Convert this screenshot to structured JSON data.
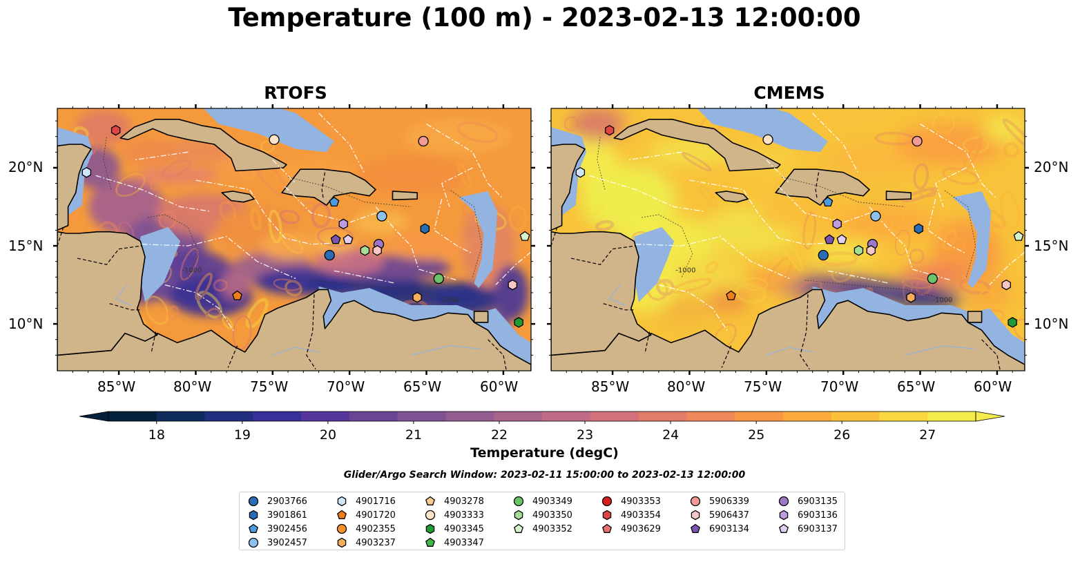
{
  "title": "Temperature (100 m) - 2023-02-13 12:00:00",
  "panels": [
    {
      "title": "RTOFS",
      "theme": "rtofs"
    },
    {
      "title": "CMEMS",
      "theme": "cmems"
    }
  ],
  "axes": {
    "x_ticks": [
      "85°W",
      "80°W",
      "75°W",
      "70°W",
      "65°W",
      "60°W"
    ],
    "y_ticks": [
      "20°N",
      "15°N",
      "10°N"
    ],
    "lon_range": [
      -89,
      -58.2
    ],
    "lat_range": [
      7,
      23.8
    ]
  },
  "colorbar": {
    "label": "Temperature (degC)",
    "ticks": [
      "18",
      "19",
      "20",
      "21",
      "22",
      "23",
      "24",
      "25",
      "26",
      "27"
    ],
    "min": 18,
    "max": 27,
    "colors": [
      "#04203a",
      "#0e2b5c",
      "#21307e",
      "#38309a",
      "#543599",
      "#6a4595",
      "#7f5293",
      "#935c90",
      "#a9648c",
      "#bf6b86",
      "#d2717c",
      "#e27b6a",
      "#ef8858",
      "#f89847",
      "#fbab3c",
      "#fbc03a",
      "#f7d840",
      "#f3ec4c"
    ],
    "extend": "both"
  },
  "contour_labels": [
    "-1000",
    "-1000"
  ],
  "search_window": "Glider/Argo Search Window: 2023-02-11 15:00:00 to 2023-02-13 12:00:00",
  "legend": [
    {
      "id": "2903766",
      "color": "#2a6db5",
      "marker": "circle"
    },
    {
      "id": "3901861",
      "color": "#2a6db5",
      "marker": "hexagon"
    },
    {
      "id": "3902456",
      "color": "#4b9bdf",
      "marker": "pentagon"
    },
    {
      "id": "3902457",
      "color": "#8ec0ec",
      "marker": "circle"
    },
    {
      "id": "4901716",
      "color": "#cfe6f8",
      "marker": "hexagon"
    },
    {
      "id": "4901720",
      "color": "#ef7d1a",
      "marker": "pentagon"
    },
    {
      "id": "4902355",
      "color": "#f5902e",
      "marker": "circle"
    },
    {
      "id": "4903237",
      "color": "#f8ad5e",
      "marker": "hexagon"
    },
    {
      "id": "4903278",
      "color": "#fbcb95",
      "marker": "pentagon"
    },
    {
      "id": "4903333",
      "color": "#fde3c8",
      "marker": "circle"
    },
    {
      "id": "4903345",
      "color": "#219a35",
      "marker": "hexagon"
    },
    {
      "id": "4903347",
      "color": "#3fb54a",
      "marker": "pentagon"
    },
    {
      "id": "4903349",
      "color": "#6bc36a",
      "marker": "circle"
    },
    {
      "id": "4903350",
      "color": "#a6dd97",
      "marker": "hexagon"
    },
    {
      "id": "4903352",
      "color": "#d7f5cd",
      "marker": "pentagon"
    },
    {
      "id": "4903353",
      "color": "#d42020",
      "marker": "circle"
    },
    {
      "id": "4903354",
      "color": "#e04545",
      "marker": "hexagon"
    },
    {
      "id": "4903629",
      "color": "#ea7070",
      "marker": "pentagon"
    },
    {
      "id": "5906339",
      "color": "#f19a98",
      "marker": "circle"
    },
    {
      "id": "5906437",
      "color": "#f8c6c4",
      "marker": "hexagon"
    },
    {
      "id": "6903134",
      "color": "#7c55b1",
      "marker": "pentagon"
    },
    {
      "id": "6903135",
      "color": "#9d77c8",
      "marker": "circle"
    },
    {
      "id": "6903136",
      "color": "#bd9ddf",
      "marker": "hexagon"
    },
    {
      "id": "6903137",
      "color": "#e0cff2",
      "marker": "pentagon"
    }
  ],
  "floats": [
    {
      "id": "2903766",
      "lon": -71.3,
      "lat": 14.4
    },
    {
      "id": "3901861",
      "lon": -65.1,
      "lat": 16.1
    },
    {
      "id": "3902456",
      "lon": -71.0,
      "lat": 17.8
    },
    {
      "id": "3902457",
      "lon": -67.9,
      "lat": 16.9
    },
    {
      "id": "4901716",
      "lon": -87.1,
      "lat": 19.7
    },
    {
      "id": "4901720",
      "lon": -77.3,
      "lat": 11.8
    },
    {
      "id": "4903237",
      "lon": -65.6,
      "lat": 11.7
    },
    {
      "id": "4903333",
      "lon": -74.9,
      "lat": 21.8
    },
    {
      "id": "4903345",
      "lon": -59.0,
      "lat": 10.1
    },
    {
      "id": "4903349",
      "lon": -64.2,
      "lat": 12.9
    },
    {
      "id": "4903350",
      "lon": -69.0,
      "lat": 14.7
    },
    {
      "id": "4903352",
      "lon": -58.6,
      "lat": 15.6
    },
    {
      "id": "4903354",
      "lon": -85.2,
      "lat": 22.4
    },
    {
      "id": "5906339",
      "lon": -65.2,
      "lat": 21.7
    },
    {
      "id": "5906437",
      "lon": -59.4,
      "lat": 12.5
    },
    {
      "id": "6903134",
      "lon": -70.9,
      "lat": 15.4
    },
    {
      "id": "6903135",
      "lon": -68.1,
      "lat": 15.1
    },
    {
      "id": "6903136",
      "lon": -70.4,
      "lat": 16.4
    },
    {
      "id": "6903137",
      "lon": -70.1,
      "lat": 15.4
    },
    {
      "id": "5906437",
      "lon": -68.2,
      "lat": 14.7
    }
  ]
}
